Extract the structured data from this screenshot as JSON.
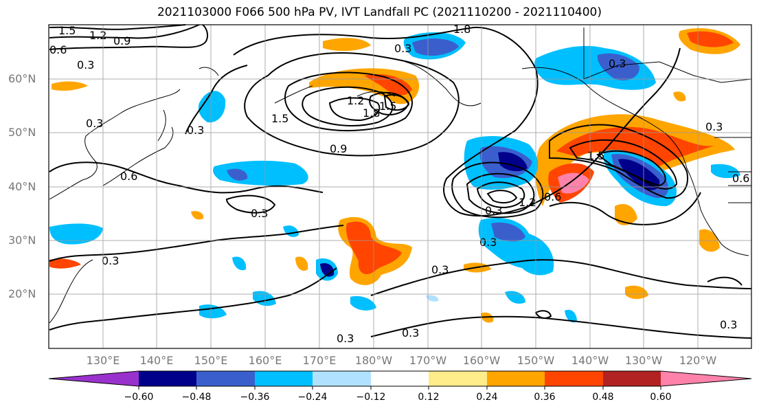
{
  "title": "2021103000 F066 500 hPa PV, IVT Landfall PC (2021110200 - 2021110400)",
  "map": {
    "lat_labels": [
      "60°N",
      "50°N",
      "40°N",
      "30°N",
      "20°N"
    ],
    "lon_labels": [
      "130°E",
      "140°E",
      "150°E",
      "160°E",
      "170°E",
      "180°W",
      "170°W",
      "160°W",
      "150°W",
      "140°W",
      "130°W",
      "120°W"
    ],
    "contour_labels": [
      "1.5",
      "1.2",
      "0.9",
      "0.6",
      "0.3",
      "1.8",
      "1.5",
      "1.2",
      "1.8",
      "1.5",
      "0.9",
      "0.6",
      "0.3",
      "1.2",
      "0.6",
      "1.5",
      "0.3",
      "0.3",
      "0.3",
      "0.3",
      "0.3",
      "0.3",
      "0.3",
      "0.3",
      "0.3",
      "0.3",
      "0.3",
      "0.6",
      "0.3"
    ]
  },
  "colorbar": {
    "ticks": [
      "−0.60",
      "−0.48",
      "−0.36",
      "−0.24",
      "−0.12",
      "0.12",
      "0.24",
      "0.36",
      "0.48",
      "0.60"
    ],
    "colors": [
      "#9932cc",
      "#00008b",
      "#3a5fcd",
      "#00bfff",
      "#b0e2ff",
      "#ffffff",
      "#ffec8b",
      "#ffa500",
      "#ff4500",
      "#b22222",
      "#ff82ab"
    ]
  }
}
